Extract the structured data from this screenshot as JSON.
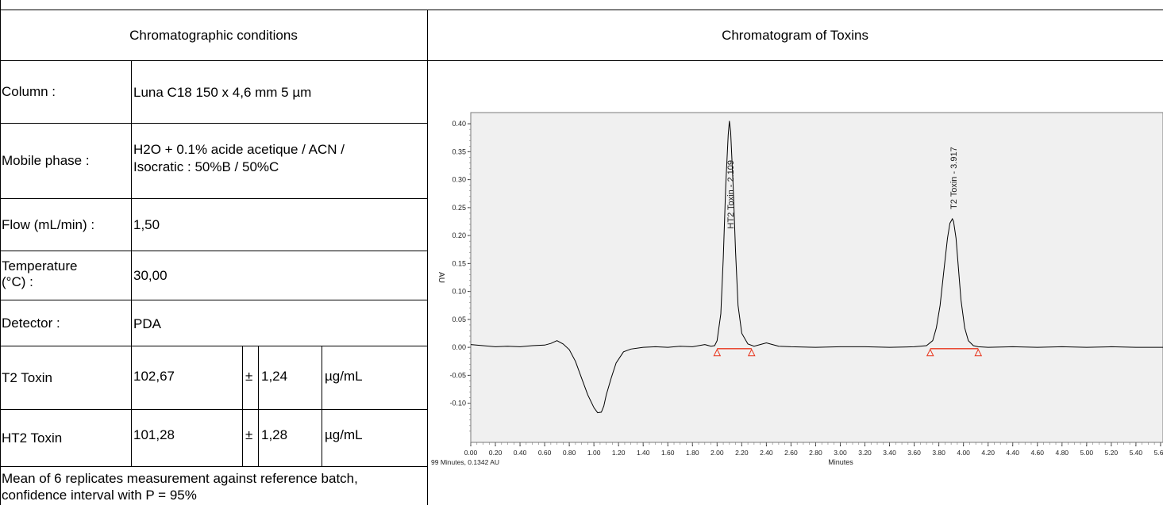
{
  "table": {
    "header_left": "Chromatographic conditions",
    "header_right": "Chromatogram of Toxins",
    "rows": [
      {
        "label": "Column :",
        "value": "Luna C18 150 x 4,6 mm 5 µm"
      },
      {
        "label": "Mobile phase :",
        "value_line1": "H2O + 0.1% acide acetique / ACN /",
        "value_line2": "Isocratic : 50%B / 50%C"
      },
      {
        "label": "Flow (mL/min) :",
        "value": "1,50"
      },
      {
        "label_line1": "Temperature",
        "label_line2": "(°C) :",
        "value": "30,00"
      },
      {
        "label": "Detector :",
        "value": "PDA"
      }
    ],
    "results": [
      {
        "label": "T2 Toxin",
        "mean": "102,67",
        "pm": "±",
        "ci": "1,24",
        "unit": "µg/mL"
      },
      {
        "label": "HT2 Toxin",
        "mean": "101,28",
        "pm": "±",
        "ci": "1,28",
        "unit": "µg/mL"
      }
    ],
    "footnote_line1": "Mean of 6 replicates measurement against reference batch,",
    "footnote_line2": "confidence interval with P = 95%"
  },
  "chart_data": {
    "type": "line",
    "title": "",
    "xlabel": "Minutes",
    "ylabel": "AU",
    "xlim": [
      0.0,
      5.62
    ],
    "ylim": [
      -0.17,
      0.42
    ],
    "x_ticks": [
      0.0,
      0.2,
      0.4,
      0.6,
      0.8,
      1.0,
      1.2,
      1.4,
      1.6,
      1.8,
      2.0,
      2.2,
      2.4,
      2.6,
      2.8,
      3.0,
      3.2,
      3.4,
      3.6,
      3.8,
      4.0,
      4.2,
      4.4,
      4.6,
      4.8,
      5.0,
      5.2,
      5.4,
      5.6
    ],
    "x_tick_labels": [
      "0.00",
      "0.20",
      "0.40",
      "0.60",
      "0.80",
      "1.00",
      "1.20",
      "1.40",
      "1.60",
      "1.80",
      "2.00",
      "2.20",
      "2.40",
      "2.60",
      "2.80",
      "3.00",
      "3.20",
      "3.40",
      "3.60",
      "3.80",
      "4.00",
      "4.20",
      "4.40",
      "4.60",
      "4.80",
      "5.00",
      "5.20",
      "5.40",
      "5.60"
    ],
    "y_ticks": [
      -0.1,
      -0.05,
      0.0,
      0.05,
      0.1,
      0.15,
      0.2,
      0.25,
      0.3,
      0.35,
      0.4
    ],
    "y_tick_labels": [
      "-0.10",
      "-0.05",
      "0.00",
      "0.05",
      "0.10",
      "0.15",
      "0.20",
      "0.25",
      "0.30",
      "0.35",
      "0.40"
    ],
    "grid": false,
    "colors": {
      "trace": "#000000",
      "baseline": "#e8341c",
      "marker": "#e8341c",
      "plot_bg": "#f0f0f0"
    },
    "series": [
      {
        "x": [
          0.0,
          0.1,
          0.2,
          0.3,
          0.4,
          0.5,
          0.6,
          0.65,
          0.7,
          0.75,
          0.8,
          0.85,
          0.9,
          0.95,
          1.0,
          1.03,
          1.06,
          1.08,
          1.1,
          1.14,
          1.18,
          1.24,
          1.3,
          1.4,
          1.5,
          1.6,
          1.7,
          1.8,
          1.9,
          1.95,
          1.98,
          2.0,
          2.03,
          2.05,
          2.07,
          2.09,
          2.1,
          2.11,
          2.13,
          2.15,
          2.17,
          2.2,
          2.25,
          2.3,
          2.35,
          2.4,
          2.45,
          2.5,
          2.6,
          2.8,
          3.0,
          3.2,
          3.4,
          3.6,
          3.7,
          3.75,
          3.78,
          3.81,
          3.84,
          3.87,
          3.89,
          3.91,
          3.92,
          3.94,
          3.96,
          3.98,
          4.01,
          4.04,
          4.08,
          4.12,
          4.2,
          4.4,
          4.6,
          4.8,
          5.0,
          5.2,
          5.4,
          5.62
        ],
        "y": [
          0.005,
          0.003,
          0.001,
          0.002,
          0.001,
          0.003,
          0.004,
          0.007,
          0.012,
          0.006,
          -0.004,
          -0.025,
          -0.055,
          -0.085,
          -0.108,
          -0.117,
          -0.116,
          -0.105,
          -0.085,
          -0.055,
          -0.028,
          -0.008,
          -0.003,
          0.0,
          0.001,
          0.0,
          0.002,
          0.001,
          0.005,
          0.002,
          0.003,
          0.012,
          0.06,
          0.16,
          0.29,
          0.38,
          0.405,
          0.385,
          0.29,
          0.17,
          0.075,
          0.025,
          0.006,
          0.002,
          0.005,
          0.008,
          0.005,
          0.002,
          0.001,
          0.0,
          0.001,
          0.001,
          0.0,
          0.001,
          0.003,
          0.012,
          0.035,
          0.075,
          0.135,
          0.195,
          0.222,
          0.23,
          0.225,
          0.195,
          0.14,
          0.085,
          0.035,
          0.012,
          0.003,
          0.001,
          0.0,
          0.001,
          0.0,
          0.001,
          0.0,
          0.001,
          0.0,
          0.0
        ]
      }
    ],
    "peaks": [
      {
        "label": "HT2 Toxin - 2.109",
        "x": 2.109,
        "y": 0.405
      },
      {
        "label": "T2 Toxin - 3.917",
        "x": 3.917,
        "y": 0.23
      }
    ],
    "integration_baselines": [
      {
        "x1": 2.0,
        "x2": 2.28,
        "y": -0.008
      },
      {
        "x1": 3.73,
        "x2": 4.12,
        "y": -0.008
      }
    ],
    "cursor_readout": "99 Minutes, 0.1342 AU"
  }
}
